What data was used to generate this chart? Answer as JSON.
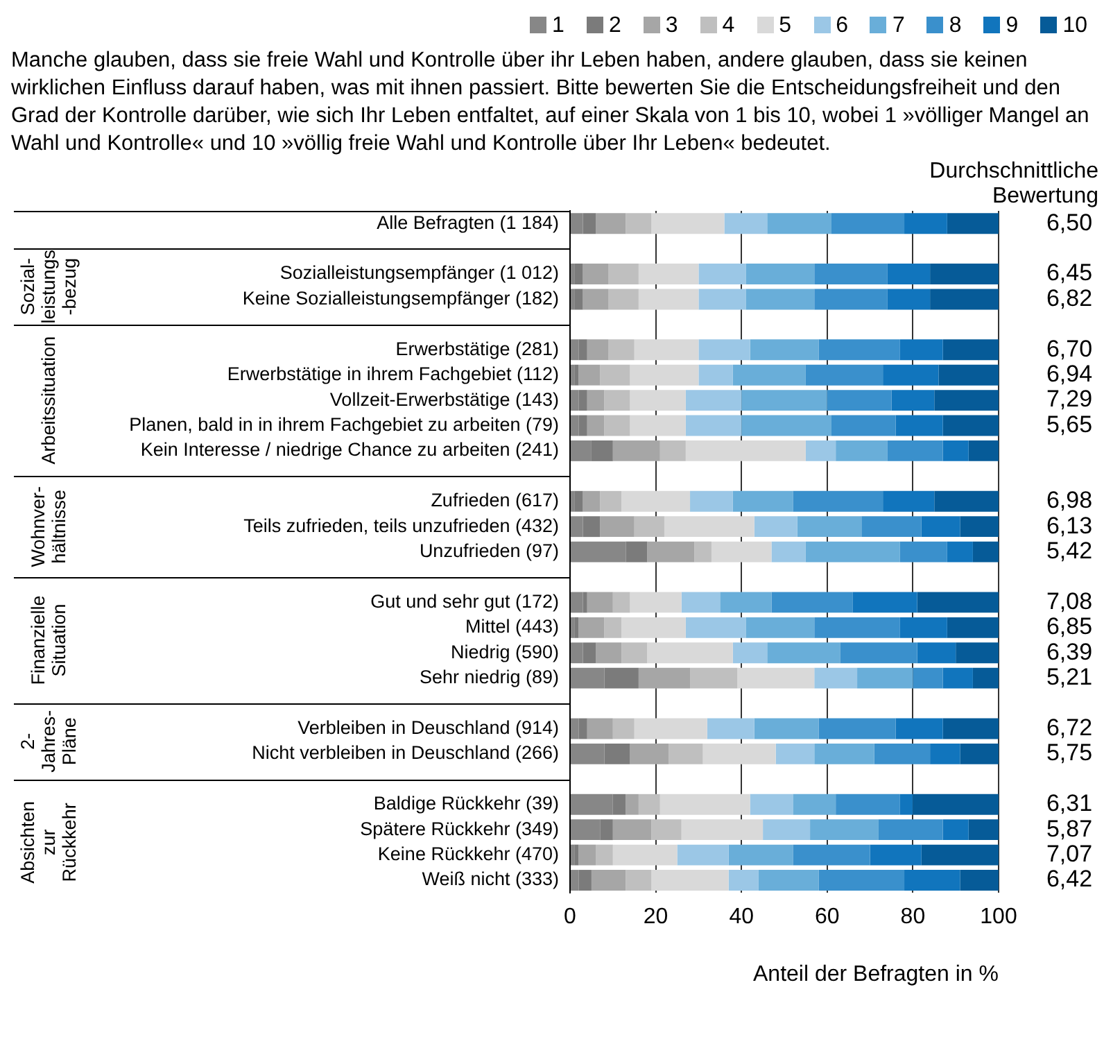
{
  "chart_data": {
    "type": "bar",
    "orientation": "horizontal",
    "stacked": true,
    "title": "Manche glauben, dass sie freie Wahl und Kontrolle über ihr Leben haben, andere glauben, dass sie keinen wirklichen Einfluss darauf haben, was mit ihnen passiert. Bitte bewerten Sie die Entscheidungsfreiheit und den Grad der Kontrolle darüber, wie sich Ihr Leben entfaltet, auf einer Skala von 1 bis 10, wobei 1 »völliger Mangel an Wahl und Kontrolle« und 10 »völlig freie Wahl und Kontrolle über Ihr Leben« bedeutet.",
    "xlabel": "Anteil der Befragten in %",
    "categories": [
      "Alle Befragten (1 184)",
      null,
      "Sozialleistungsempfänger (1 012)",
      "Keine Sozialleistungsempfänger (182)",
      null,
      "Erwerbstätige (281)",
      "Erwerbstätige in ihrem Fachgebiet (112)",
      "Vollzeit-Erwerbstätige (143)",
      "Planen, bald in in ihrem Fachgebiet zu arbeiten (79)",
      "Kein Interesse / niedrige Chance zu arbeiten (241)",
      null,
      "Zufrieden (617)",
      "Teils zufrieden, teils unzufrieden (432)",
      "Unzufrieden (97)",
      null,
      "Gut und sehr gut (172)",
      "Mittel (443)",
      "Niedrig (590)",
      "Sehr niedrig (89)",
      null,
      "Verbleiben in Deuschland (914)",
      "Nicht verbleiben in Deuschland (266)",
      null,
      "Baldige Rückkehr (39)",
      "Spätere Rückkehr (349)",
      "Keine Rückkehr (470)",
      "Weiß nicht (333)"
    ],
    "series": [
      {
        "name": "1",
        "color": "#878787",
        "values": [
          3,
          null,
          1,
          1,
          null,
          2,
          1,
          2,
          2,
          5,
          null,
          1,
          3,
          13,
          null,
          3,
          1,
          3,
          8,
          null,
          2,
          8,
          null,
          10,
          7,
          1,
          2
        ]
      },
      {
        "name": "2",
        "color": "#7b7b7b",
        "values": [
          3,
          null,
          2,
          2,
          null,
          2,
          1,
          2,
          2,
          5,
          null,
          2,
          4,
          5,
          null,
          1,
          1,
          3,
          8,
          null,
          2,
          6,
          null,
          3,
          3,
          1,
          3
        ]
      },
      {
        "name": "3",
        "color": "#a6a6a6",
        "values": [
          7,
          null,
          6,
          6,
          null,
          5,
          5,
          4,
          4,
          11,
          null,
          4,
          8,
          11,
          null,
          6,
          6,
          6,
          12,
          null,
          6,
          9,
          null,
          3,
          9,
          4,
          8
        ]
      },
      {
        "name": "4",
        "color": "#bfbfbf",
        "values": [
          6,
          null,
          7,
          7,
          null,
          6,
          7,
          6,
          6,
          6,
          null,
          5,
          7,
          4,
          null,
          4,
          4,
          6,
          11,
          null,
          5,
          8,
          null,
          5,
          7,
          4,
          6
        ]
      },
      {
        "name": "5",
        "color": "#d9d9d9",
        "values": [
          17,
          null,
          14,
          14,
          null,
          15,
          16,
          13,
          13,
          28,
          null,
          16,
          21,
          14,
          null,
          12,
          15,
          20,
          18,
          null,
          17,
          17,
          null,
          21,
          19,
          15,
          18
        ]
      },
      {
        "name": "6",
        "color": "#9bc7e6",
        "values": [
          10,
          null,
          11,
          11,
          null,
          12,
          8,
          13,
          13,
          7,
          null,
          10,
          10,
          8,
          null,
          9,
          14,
          8,
          10,
          null,
          11,
          9,
          null,
          10,
          11,
          12,
          7
        ]
      },
      {
        "name": "7",
        "color": "#69aed9",
        "values": [
          15,
          null,
          16,
          16,
          null,
          16,
          17,
          20,
          21,
          12,
          null,
          14,
          15,
          22,
          null,
          12,
          16,
          17,
          13,
          null,
          15,
          14,
          null,
          10,
          16,
          15,
          14
        ]
      },
      {
        "name": "8",
        "color": "#3a90cc",
        "values": [
          17,
          null,
          17,
          17,
          null,
          19,
          18,
          15,
          15,
          13,
          null,
          21,
          14,
          11,
          null,
          19,
          20,
          18,
          7,
          null,
          18,
          13,
          null,
          15,
          15,
          18,
          20
        ]
      },
      {
        "name": "9",
        "color": "#1175bd",
        "values": [
          10,
          null,
          10,
          10,
          null,
          10,
          13,
          10,
          11,
          6,
          null,
          12,
          9,
          6,
          null,
          15,
          11,
          9,
          7,
          null,
          11,
          7,
          null,
          3,
          6,
          12,
          13
        ]
      },
      {
        "name": "10",
        "color": "#065b98",
        "values": [
          12,
          null,
          16,
          16,
          null,
          13,
          14,
          15,
          13,
          7,
          null,
          15,
          9,
          6,
          null,
          19,
          12,
          10,
          6,
          null,
          13,
          9,
          null,
          20,
          7,
          18,
          9
        ]
      }
    ],
    "xlim": [
      0,
      100
    ],
    "xticks": [
      0,
      20,
      40,
      60,
      80,
      100
    ],
    "grid": "x",
    "legend": "top right",
    "annotations": [
      "Durchschnittliche\nBewertung",
      "Sozial-\nleistungs\n-bezug",
      "Arbeitssituation",
      "Wohnver-\nhältnisse",
      "Finanzielle\nSituation",
      "2-\nJahres-\nPläne",
      "Absichten\nzur\nRückkehr",
      "6,50",
      "6,45\n6,82",
      "6,70\n6,94\n7,29\n5,65",
      "6,98\n6,13\n5,42",
      "7,08\n6,85\n6,39\n5,21",
      "6,72\n5,75",
      "6,31\n5,87\n7,07\n6,42"
    ]
  }
}
